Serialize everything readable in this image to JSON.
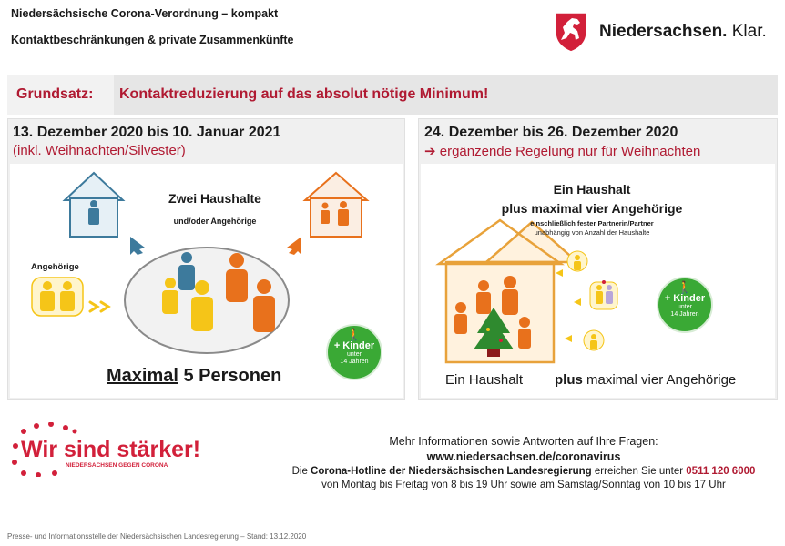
{
  "header": {
    "title": "Niedersächsische Corona-Verordnung – kompakt",
    "subtitle": "Kontaktbeschränkungen & private Zusammenkünfte"
  },
  "brand": {
    "name": "Niedersachsen.",
    "claim": "Klar.",
    "icon": "horse-crest-icon"
  },
  "principle": {
    "label": "Grundsatz:",
    "text": "Kontaktreduzierung auf das absolut nötige Minimum!"
  },
  "left_panel": {
    "title": "13. Dezember 2020 bis 10. Januar 2021",
    "subtitle": "(inkl. Weihnachten/Silvester)",
    "heading": "Zwei Haushalte",
    "subheading": "und/oder Angehörige",
    "relatives_label": "Angehörige",
    "max_word": "Maximal",
    "max_rest": " 5 Personen",
    "badge": {
      "line1": "+ Kinder",
      "line2": "unter",
      "line3": "14 Jahren"
    }
  },
  "right_panel": {
    "title": "24. Dezember bis 26. Dezember 2020",
    "arrow": "➔",
    "subtitle": "ergänzende Regelung nur für Weihnachten",
    "heading1": "Ein Haushalt",
    "heading2": "plus maximal vier Angehörige",
    "note1": "einschließlich fester Partnerin/Partner",
    "note2": "unabhängig von Anzahl der Haushalte",
    "caption_left": "Ein Haushalt",
    "caption_right_bold": "plus",
    "caption_right_rest": " maximal vier Angehörige",
    "badge": {
      "line1": "+ Kinder",
      "line2": "unter",
      "line3": "14 Jahren"
    }
  },
  "campaign": {
    "line1a": "Wir",
    "line1b": "sind stärker!",
    "line2": "NIEDERSACHSEN GEGEN CORONA"
  },
  "footer": {
    "info": "Mehr Informationen sowie Antworten auf Ihre Fragen:",
    "url": "www.niedersachsen.de/coronavirus",
    "hotline_pre": "Die ",
    "hotline_name": "Corona-Hotline der Niedersächsischen Landesregierung",
    "hotline_mid": " erreichen Sie unter ",
    "hotline_number": "0511 120 6000",
    "hours": "von Montag bis Freitag von 8 bis 19 Uhr sowie am Samstag/Sonntag von 10 bis 17 Uhr",
    "credit": "Presse- und Informationsstelle der Niedersächsischen Landesregierung – Stand: 13.12.2020"
  },
  "colors": {
    "brand_red": "#b01a32",
    "blue": "#3d7a9c",
    "orange": "#e8711c",
    "yellow": "#f5c518",
    "green": "#3aa935"
  }
}
